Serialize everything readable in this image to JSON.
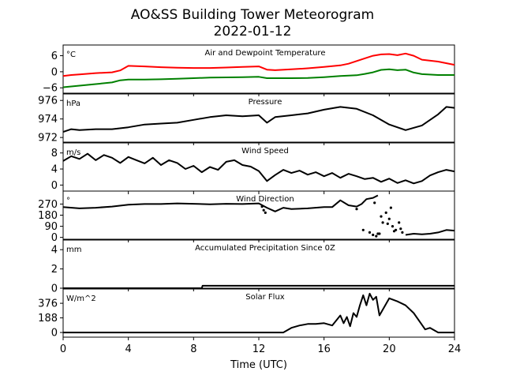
{
  "title_line1": "AO&SS Building Tower Meteorogram",
  "title_line2": "2022-01-12",
  "xlabel": "Time (UTC)",
  "chart_data": {
    "type": "line",
    "x_range": [
      0,
      24
    ],
    "x_ticks": [
      0,
      4,
      8,
      12,
      16,
      20,
      24
    ],
    "x_tick_labels": [
      "0",
      "4",
      "8",
      "12",
      "16",
      "20",
      "24"
    ],
    "panels": [
      {
        "name": "temperature",
        "title": "Air and Dewpoint Temperature",
        "unit": "°C",
        "ylim": [
          -8,
          10
        ],
        "yticks": [
          6,
          0,
          -6
        ],
        "ytick_labels": [
          "6",
          "0",
          "−6"
        ],
        "series": [
          {
            "color": "#ff0000",
            "x": [
              0,
              0.5,
              1,
              2,
              3,
              3.5,
              4,
              5,
              6,
              7,
              8,
              9,
              10,
              11,
              12,
              12.5,
              13,
              14,
              15,
              16,
              17,
              17.5,
              18,
              18.5,
              19,
              19.5,
              20,
              20.5,
              21,
              21.5,
              22,
              23,
              24
            ],
            "y": [
              -1.6,
              -1.2,
              -1.0,
              -0.5,
              -0.2,
              0.5,
              2.2,
              2.0,
              1.7,
              1.5,
              1.4,
              1.4,
              1.6,
              1.8,
              2.0,
              0.8,
              0.6,
              0.9,
              1.3,
              1.8,
              2.4,
              3.0,
              4.0,
              5.0,
              6.0,
              6.5,
              6.6,
              6.2,
              6.8,
              6.0,
              4.5,
              3.8,
              2.6
            ]
          },
          {
            "color": "#008000",
            "x": [
              0,
              1,
              2,
              3,
              3.5,
              4,
              5,
              6,
              7,
              8,
              9,
              10,
              11,
              12,
              12.5,
              13,
              14,
              15,
              16,
              17,
              18,
              18.5,
              19,
              19.5,
              20,
              20.5,
              21,
              21.5,
              22,
              23,
              24
            ],
            "y": [
              -5.8,
              -5.2,
              -4.6,
              -4.0,
              -3.2,
              -2.9,
              -2.9,
              -2.8,
              -2.6,
              -2.4,
              -2.2,
              -2.1,
              -2.0,
              -1.9,
              -2.4,
              -2.4,
              -2.4,
              -2.3,
              -2.0,
              -1.6,
              -1.3,
              -0.8,
              -0.2,
              0.7,
              0.9,
              0.6,
              0.8,
              -0.3,
              -0.9,
              -1.2,
              -1.2
            ]
          }
        ]
      },
      {
        "name": "pressure",
        "title": "Pressure",
        "unit": "hPa",
        "ylim": [
          971.5,
          976.7
        ],
        "yticks": [
          976,
          974,
          972
        ],
        "ytick_labels": [
          "976",
          "974",
          "972"
        ],
        "series": [
          {
            "color": "#000000",
            "x": [
              0,
              0.5,
              1,
              2,
              3,
              4,
              5,
              6,
              7,
              8,
              9,
              10,
              11,
              12,
              12.5,
              13,
              14,
              15,
              16,
              17,
              18,
              19,
              20,
              21,
              22,
              23,
              23.5,
              24
            ],
            "y": [
              972.6,
              972.9,
              972.8,
              972.9,
              972.9,
              973.1,
              973.4,
              973.5,
              973.6,
              973.9,
              974.2,
              974.4,
              974.3,
              974.4,
              973.6,
              974.2,
              974.4,
              974.6,
              975.0,
              975.3,
              975.1,
              974.4,
              973.4,
              972.8,
              973.3,
              974.5,
              975.3,
              975.2
            ]
          }
        ]
      },
      {
        "name": "wind_speed",
        "title": "Wind Speed",
        "unit": "m/s",
        "ylim": [
          -1.5,
          10.5
        ],
        "yticks": [
          8,
          4,
          0
        ],
        "ytick_labels": [
          "8",
          "4",
          "0"
        ],
        "series": [
          {
            "color": "#000000",
            "x": [
              0,
              0.5,
              1,
              1.5,
              2,
              2.5,
              3,
              3.5,
              4,
              4.5,
              5,
              5.5,
              6,
              6.5,
              7,
              7.5,
              8,
              8.5,
              9,
              9.5,
              10,
              10.5,
              11,
              11.5,
              12,
              12.5,
              13,
              13.5,
              14,
              14.5,
              15,
              15.5,
              16,
              16.5,
              17,
              17.5,
              18,
              18.5,
              19,
              19.5,
              20,
              20.5,
              21,
              21.5,
              22,
              22.5,
              23,
              23.5,
              24
            ],
            "y": [
              6.0,
              7.2,
              6.5,
              7.8,
              6.2,
              7.5,
              6.8,
              5.5,
              7.0,
              6.2,
              5.4,
              6.8,
              5.0,
              6.2,
              5.5,
              4.0,
              4.8,
              3.2,
              4.5,
              3.8,
              5.8,
              6.2,
              5.0,
              4.6,
              3.5,
              1.0,
              2.5,
              3.8,
              3.0,
              3.6,
              2.6,
              3.2,
              2.2,
              3.0,
              1.8,
              2.8,
              2.2,
              1.5,
              1.8,
              0.8,
              1.6,
              0.5,
              1.2,
              0.4,
              1.0,
              2.4,
              3.2,
              3.8,
              3.4
            ]
          }
        ]
      },
      {
        "name": "wind_direction",
        "title": "Wind Direction",
        "unit": "°",
        "ylim": [
          -15,
          375
        ],
        "yticks": [
          270,
          180,
          90,
          0
        ],
        "ytick_labels": [
          "270",
          "180",
          "90",
          "0"
        ],
        "series": [
          {
            "color": "#000000",
            "x": [
              0,
              1,
              2,
              3,
              4,
              5,
              6,
              7,
              8,
              9,
              10,
              11,
              12,
              12.5,
              13,
              13.5,
              14,
              15,
              16,
              16.5,
              17,
              17.5,
              18,
              18.3,
              18.6,
              19,
              19.3
            ],
            "y": [
              245,
              235,
              240,
              250,
              265,
              270,
              270,
              275,
              272,
              268,
              272,
              270,
              275,
              240,
              210,
              240,
              230,
              235,
              245,
              245,
              300,
              260,
              250,
              270,
              310,
              320,
              340
            ]
          },
          {
            "color": "#000000",
            "x": [
              21,
              21.5,
              22,
              22.5,
              23,
              23.5,
              24
            ],
            "y": [
              20,
              30,
              25,
              30,
              40,
              60,
              55
            ]
          }
        ],
        "scatter": {
          "x": [
            12.2,
            12.3,
            12.4,
            18.0,
            18.4,
            18.8,
            19.0,
            19.2,
            19.4,
            19.6,
            19.8,
            20.0,
            20.2,
            20.4,
            20.6,
            20.8,
            19.1,
            19.5,
            20.1,
            20.7,
            19.3,
            19.9,
            20.3
          ],
          "y": [
            250,
            220,
            200,
            230,
            60,
            40,
            20,
            10,
            30,
            120,
            200,
            150,
            90,
            60,
            120,
            40,
            280,
            170,
            240,
            70,
            30,
            110,
            50
          ]
        }
      },
      {
        "name": "precipitation",
        "title": "Accumulated Precipitation Since 0Z",
        "unit": "mm",
        "ylim": [
          0,
          5
        ],
        "yticks": [
          4,
          2,
          0
        ],
        "ytick_labels": [
          "4",
          "2",
          "0"
        ],
        "series": [
          {
            "color": "#000000",
            "x": [
              0,
              8.5,
              8.55,
              24
            ],
            "y": [
              0,
              0,
              0.25,
              0.25
            ]
          }
        ]
      },
      {
        "name": "solar_flux",
        "title": "Solar Flux",
        "unit": "W/m^2",
        "ylim": [
          -60,
          560
        ],
        "yticks": [
          376,
          188,
          0
        ],
        "ytick_labels": [
          "376",
          "188",
          "0"
        ],
        "series": [
          {
            "color": "#000000",
            "x": [
              0,
              13.5,
              14,
              14.5,
              15,
              15.5,
              16,
              16.5,
              17,
              17.2,
              17.4,
              17.6,
              17.8,
              18,
              18.2,
              18.4,
              18.6,
              18.8,
              19,
              19.2,
              19.4,
              20,
              20.5,
              21,
              21.5,
              22,
              22.2,
              22.5,
              23,
              24
            ],
            "y": [
              0,
              0,
              60,
              90,
              110,
              110,
              120,
              90,
              220,
              120,
              200,
              80,
              250,
              200,
              350,
              480,
              350,
              500,
              420,
              460,
              220,
              440,
              400,
              350,
              250,
              100,
              40,
              60,
              0,
              0
            ]
          }
        ]
      }
    ]
  }
}
